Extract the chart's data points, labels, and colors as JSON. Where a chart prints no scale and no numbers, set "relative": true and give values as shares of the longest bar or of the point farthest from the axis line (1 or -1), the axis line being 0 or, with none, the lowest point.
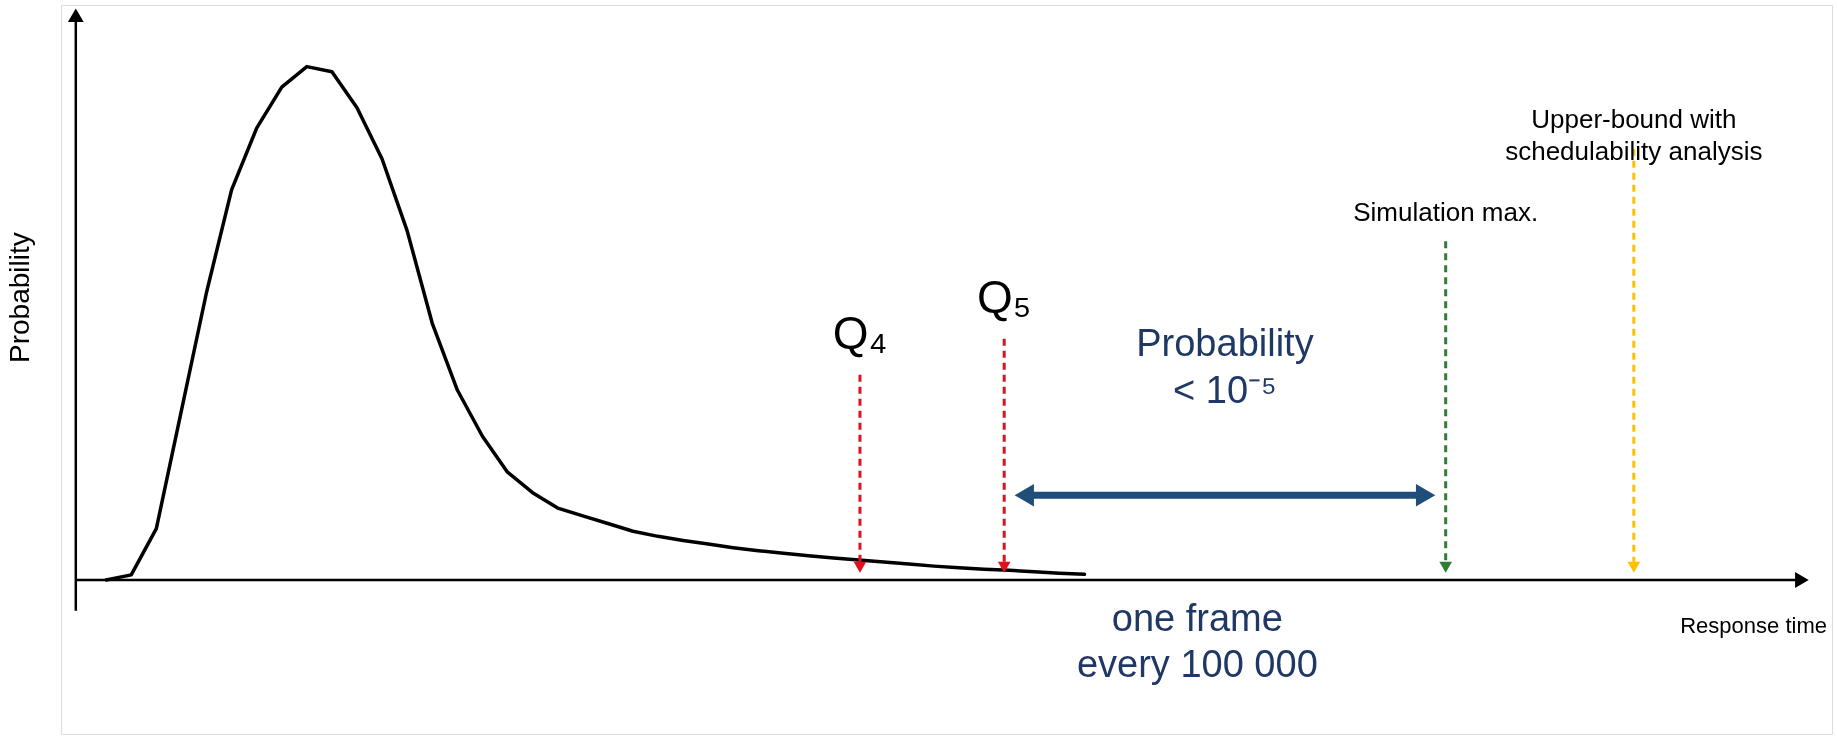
{
  "chart_data": {
    "type": "line",
    "relative": true,
    "ylabel": "Probability",
    "categories": [
      null,
      null,
      null,
      null,
      null,
      null,
      null,
      null,
      null,
      null,
      null,
      null,
      null,
      null,
      null,
      null,
      null,
      null,
      null,
      null,
      null,
      null,
      null,
      null,
      null,
      null,
      null,
      null,
      null,
      null,
      null,
      null,
      null,
      null,
      null,
      null,
      null,
      null,
      null,
      null
    ],
    "series": [
      {
        "color": "#000000",
        "values": [
          0,
          0.01,
          0.1,
          0.33,
          0.56,
          0.76,
          0.88,
          0.96,
          1,
          0.99,
          0.92,
          0.82,
          0.68,
          0.5,
          0.37,
          0.28,
          0.21,
          0.17,
          0.14,
          0.125,
          0.11,
          0.095,
          0.085,
          0.077,
          0.07,
          0.063,
          0.057,
          0.052,
          0.047,
          0.043,
          0.039,
          0.035,
          0.031,
          0.027,
          0.024,
          0.021,
          0.019,
          0.016,
          0.013,
          0.011
        ]
      }
    ],
    "annotations": [
      "Q₄",
      "Q₅",
      "Simulation max.",
      "Upper-bound with\nschedulability analysis",
      "Probability\n< 10⁻⁵",
      "one frame\nevery 100 000",
      "Response time"
    ]
  }
}
